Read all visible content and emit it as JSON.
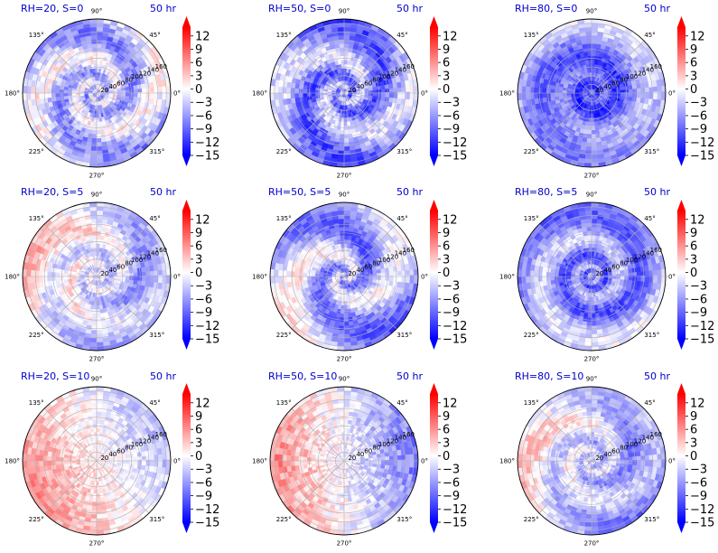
{
  "chart_data": [
    {
      "type": "heatmap",
      "projection": "polar",
      "title": "RH=20, S=0",
      "time_label": "50 hr",
      "pattern": "rh20s0"
    },
    {
      "type": "heatmap",
      "projection": "polar",
      "title": "RH=50, S=0",
      "time_label": "50 hr",
      "pattern": "rh50s0"
    },
    {
      "type": "heatmap",
      "projection": "polar",
      "title": "RH=80, S=0",
      "time_label": "50 hr",
      "pattern": "rh80s0"
    },
    {
      "type": "heatmap",
      "projection": "polar",
      "title": "RH=20, S=5",
      "time_label": "50 hr",
      "pattern": "rh20s5"
    },
    {
      "type": "heatmap",
      "projection": "polar",
      "title": "RH=50, S=5",
      "time_label": "50 hr",
      "pattern": "rh50s5"
    },
    {
      "type": "heatmap",
      "projection": "polar",
      "title": "RH=80, S=5",
      "time_label": "50 hr",
      "pattern": "rh80s5"
    },
    {
      "type": "heatmap",
      "projection": "polar",
      "title": "RH=20, S=10",
      "time_label": "50 hr",
      "pattern": "rh20s10"
    },
    {
      "type": "heatmap",
      "projection": "polar",
      "title": "RH=50, S=10",
      "time_label": "50 hr",
      "pattern": "rh50s10"
    },
    {
      "type": "heatmap",
      "projection": "polar",
      "title": "RH=80, S=10",
      "time_label": "50 hr",
      "pattern": "rh80s10"
    }
  ],
  "common": {
    "angle_ticks": [
      "0°",
      "45°",
      "90°",
      "135°",
      "180°",
      "225°",
      "270°",
      "315°"
    ],
    "radial_ticks": [
      20,
      40,
      60,
      80,
      100,
      120,
      140,
      160
    ],
    "radial_range": [
      0,
      170
    ],
    "radial_label_angle_deg": 22.5,
    "colorbar_ticks": [
      "12",
      "9",
      "6",
      "3",
      "0",
      "−3",
      "−6",
      "−9",
      "−12",
      "−15"
    ],
    "colorbar_range": [
      -15,
      14
    ],
    "colormap": "bwr",
    "colorbar_extend": "both",
    "grid": true
  }
}
